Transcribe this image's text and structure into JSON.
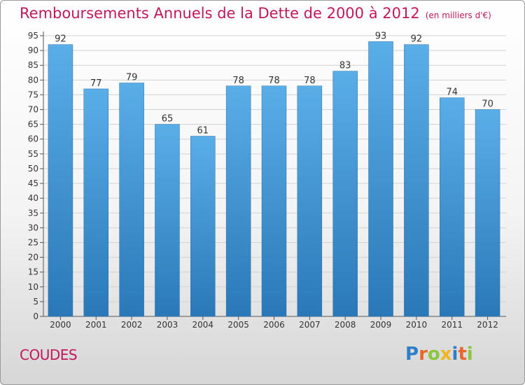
{
  "header": {
    "title": "Remboursements Annuels de la Dette de 2000 à 2012",
    "subtitle": "(en milliers d'€)"
  },
  "footer": {
    "place": "COUDES",
    "logo_text": "Proxiti"
  },
  "colors": {
    "title": "#c2185b",
    "bar_top": "#5aaee8",
    "bar_bottom": "#2a78b8"
  },
  "chart_data": {
    "type": "bar",
    "title": "Remboursements Annuels de la Dette de 2000 à 2012",
    "subtitle": "(en milliers d'€)",
    "categories": [
      "2000",
      "2001",
      "2002",
      "2003",
      "2004",
      "2005",
      "2006",
      "2007",
      "2008",
      "2009",
      "2010",
      "2011",
      "2012"
    ],
    "values": [
      92,
      77,
      79,
      65,
      61,
      78,
      78,
      78,
      83,
      93,
      92,
      74,
      70
    ],
    "ylim": [
      0,
      95
    ],
    "yticks": [
      0,
      5,
      10,
      15,
      20,
      25,
      30,
      35,
      40,
      45,
      50,
      55,
      60,
      65,
      70,
      75,
      80,
      85,
      90,
      95
    ],
    "grid": true,
    "data_labels": true
  }
}
